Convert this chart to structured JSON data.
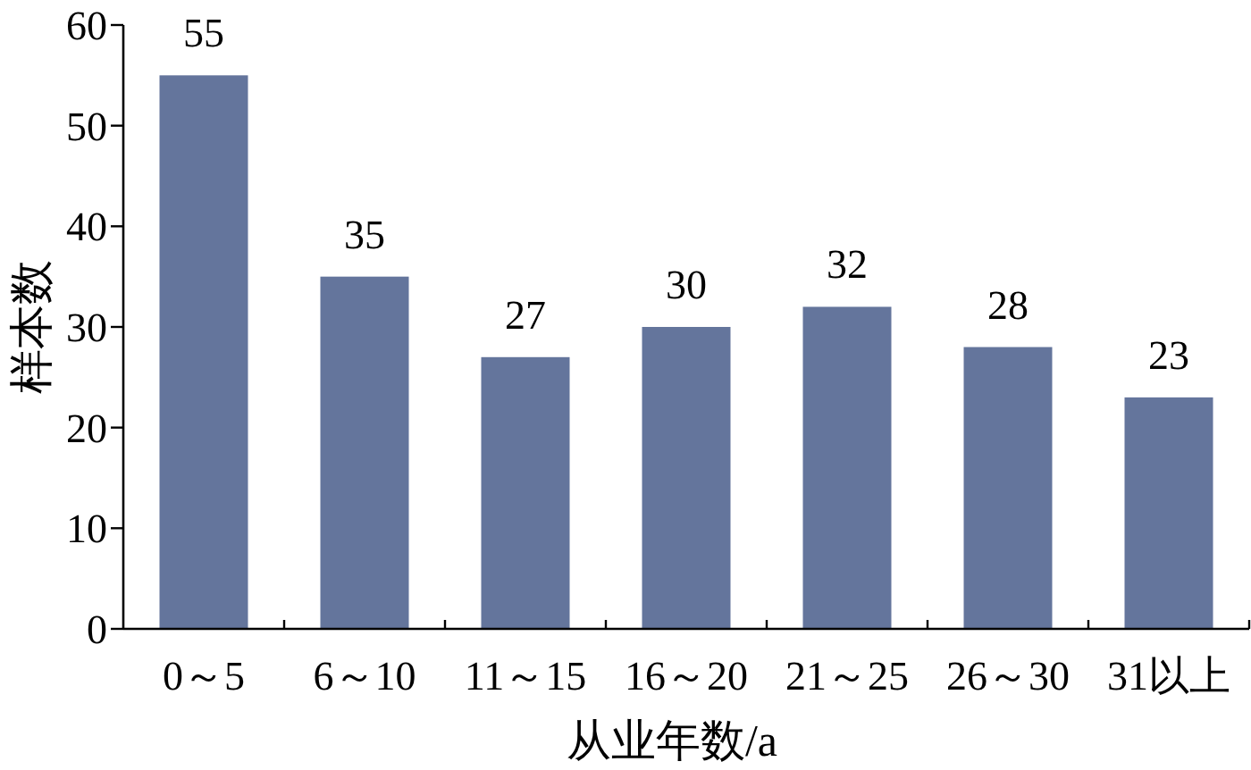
{
  "chart_data": {
    "type": "bar",
    "xlabel": "从业年数/a",
    "ylabel": "样本数",
    "categories": [
      "0～5",
      "6～10",
      "11～15",
      "16～20",
      "21～25",
      "26～30",
      "31以上"
    ],
    "values": [
      55,
      35,
      27,
      30,
      32,
      28,
      23
    ],
    "color": "#64759c",
    "ylim": [
      0,
      60
    ],
    "yticks": [
      0,
      10,
      20,
      30,
      40,
      50,
      60
    ],
    "data_labels": true
  }
}
